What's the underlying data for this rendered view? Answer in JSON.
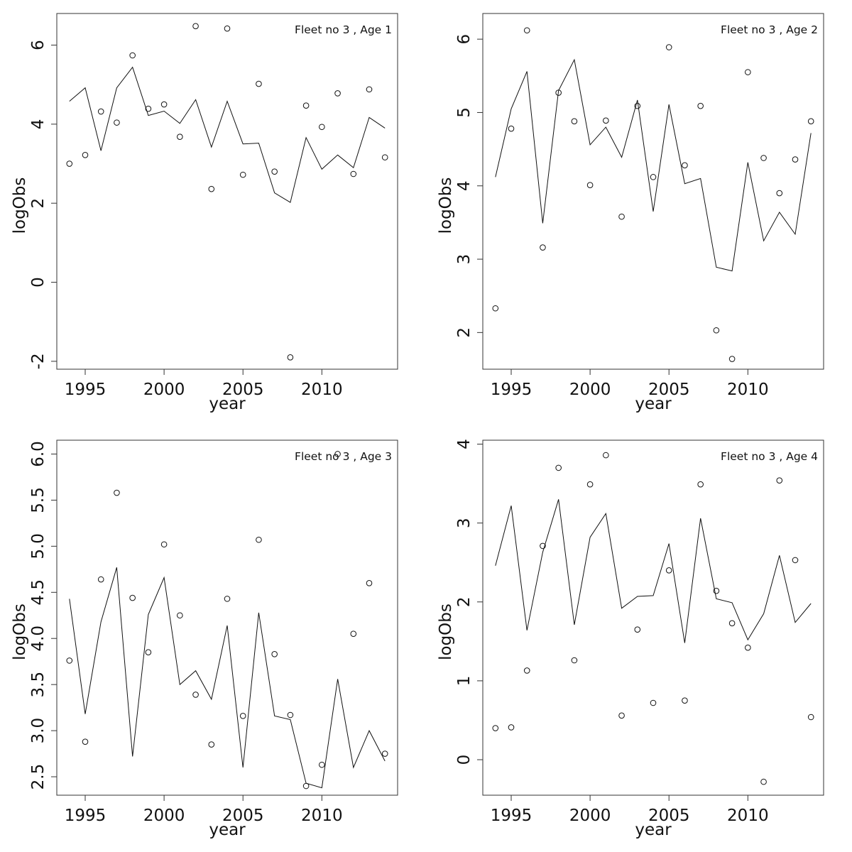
{
  "chart_data": [
    {
      "type": "line",
      "title": "Fleet no 3 , Age 1",
      "xlabel": "year",
      "ylabel": "logObs",
      "xlim": [
        1993.2,
        2014.8
      ],
      "ylim": [
        -2.2,
        6.8
      ],
      "xticks": [
        1995,
        2000,
        2005,
        2010
      ],
      "yticks": [
        -2,
        0,
        2,
        4,
        6
      ],
      "ytick_labels": [
        "-2",
        "0",
        "2",
        "4",
        "6"
      ],
      "x": [
        1994,
        1995,
        1996,
        1997,
        1998,
        1999,
        2000,
        2001,
        2002,
        2003,
        2004,
        2005,
        2006,
        2007,
        2008,
        2009,
        2010,
        2011,
        2012,
        2013,
        2014
      ],
      "observed": [
        3.0,
        3.22,
        4.32,
        4.04,
        5.74,
        4.39,
        4.5,
        3.68,
        6.48,
        2.36,
        6.42,
        2.72,
        5.02,
        2.8,
        -1.9,
        4.47,
        3.93,
        4.78,
        2.74,
        4.88,
        3.16
      ],
      "predicted": [
        4.58,
        4.92,
        3.33,
        4.92,
        5.44,
        4.22,
        4.33,
        4.02,
        4.62,
        3.42,
        4.58,
        3.5,
        3.52,
        2.26,
        2.02,
        3.66,
        2.86,
        3.22,
        2.9,
        4.17,
        3.9
      ]
    },
    {
      "type": "line",
      "title": "Fleet no 3 , Age 2",
      "xlabel": "year",
      "ylabel": "logObs",
      "xlim": [
        1993.2,
        2014.8
      ],
      "ylim": [
        1.5,
        6.35
      ],
      "xticks": [
        1995,
        2000,
        2005,
        2010
      ],
      "yticks": [
        2,
        3,
        4,
        5,
        6
      ],
      "ytick_labels": [
        "2",
        "3",
        "4",
        "5",
        "6"
      ],
      "x": [
        1994,
        1995,
        1996,
        1997,
        1998,
        1999,
        2000,
        2001,
        2002,
        2003,
        2004,
        2005,
        2006,
        2007,
        2008,
        2009,
        2010,
        2011,
        2012,
        2013,
        2014
      ],
      "observed": [
        2.33,
        4.78,
        6.12,
        3.16,
        5.27,
        4.88,
        4.01,
        4.89,
        3.58,
        5.09,
        4.12,
        5.89,
        4.28,
        5.09,
        2.03,
        1.64,
        5.55,
        4.38,
        3.9,
        4.36,
        4.88
      ],
      "predicted": [
        4.12,
        5.05,
        5.56,
        3.49,
        5.3,
        5.72,
        4.56,
        4.8,
        4.39,
        5.17,
        3.65,
        5.11,
        4.03,
        4.1,
        2.89,
        2.84,
        4.32,
        3.25,
        3.64,
        3.34,
        4.72
      ]
    },
    {
      "type": "line",
      "title": "Fleet no 3 , Age 3",
      "xlabel": "year",
      "ylabel": "logObs",
      "xlim": [
        1993.2,
        2014.8
      ],
      "ylim": [
        2.3,
        6.15
      ],
      "xticks": [
        1995,
        2000,
        2005,
        2010
      ],
      "yticks": [
        2.5,
        3.0,
        3.5,
        4.0,
        4.5,
        5.0,
        5.5,
        6.0
      ],
      "ytick_labels": [
        "2.5",
        "3.0",
        "3.5",
        "4.0",
        "4.5",
        "5.0",
        "5.5",
        "6.0"
      ],
      "x": [
        1994,
        1995,
        1996,
        1997,
        1998,
        1999,
        2000,
        2001,
        2002,
        2003,
        2004,
        2005,
        2006,
        2007,
        2008,
        2009,
        2010,
        2011,
        2012,
        2013,
        2014
      ],
      "observed": [
        3.76,
        2.88,
        4.64,
        5.58,
        4.44,
        3.85,
        5.02,
        4.25,
        3.39,
        2.85,
        4.43,
        3.16,
        5.07,
        3.83,
        3.17,
        2.4,
        2.63,
        6.0,
        4.05,
        4.6,
        2.75
      ],
      "predicted": [
        4.43,
        3.18,
        4.18,
        4.77,
        2.72,
        4.26,
        4.66,
        3.5,
        3.65,
        3.34,
        4.14,
        2.6,
        4.28,
        3.16,
        3.12,
        2.43,
        2.38,
        3.56,
        2.6,
        3.0,
        2.67
      ]
    },
    {
      "type": "line",
      "title": "Fleet no 3 , Age 4",
      "xlabel": "year",
      "ylabel": "logObs",
      "xlim": [
        1993.2,
        2014.8
      ],
      "ylim": [
        -0.45,
        4.05
      ],
      "xticks": [
        1995,
        2000,
        2005,
        2010
      ],
      "yticks": [
        0,
        1,
        2,
        3,
        4
      ],
      "ytick_labels": [
        "0",
        "1",
        "2",
        "3",
        "4"
      ],
      "x": [
        1994,
        1995,
        1996,
        1997,
        1998,
        1999,
        2000,
        2001,
        2002,
        2003,
        2004,
        2005,
        2006,
        2007,
        2008,
        2009,
        2010,
        2011,
        2012,
        2013,
        2014
      ],
      "observed": [
        0.4,
        0.41,
        1.13,
        2.71,
        3.7,
        1.26,
        3.49,
        3.86,
        0.56,
        1.65,
        0.72,
        2.4,
        0.75,
        3.49,
        2.14,
        1.73,
        1.42,
        -0.28,
        3.54,
        2.53,
        0.54
      ],
      "predicted": [
        2.46,
        3.22,
        1.64,
        2.63,
        3.3,
        1.71,
        2.82,
        3.12,
        1.92,
        2.07,
        2.08,
        2.74,
        1.48,
        3.06,
        2.04,
        1.99,
        1.52,
        1.85,
        2.59,
        1.74,
        1.98
      ]
    }
  ]
}
